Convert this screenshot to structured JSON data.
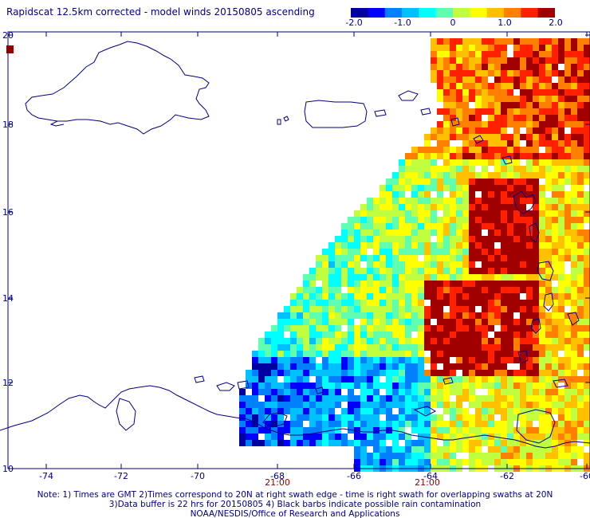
{
  "title": "Rapidscat 12.5km corrected - model winds 20150805 ascending",
  "colorbar": {
    "min": -2.0,
    "max": 2.0,
    "colors": [
      "#0000a0",
      "#0000ff",
      "#0080ff",
      "#00c0ff",
      "#00ffff",
      "#60ffb0",
      "#c0ff40",
      "#ffff00",
      "#ffc000",
      "#ff8000",
      "#ff2000",
      "#a00000"
    ],
    "tick_labels": [
      "-2.0",
      "-1.0",
      "0",
      "1.0",
      "2.0"
    ]
  },
  "axes": {
    "lon_ticks": [
      "-74",
      "-72",
      "-70",
      "-68",
      "-66",
      "-64",
      "-62",
      "-60"
    ],
    "lat_ticks": [
      "10",
      "12",
      "14",
      "16",
      "18",
      "20"
    ]
  },
  "time_labels": [
    "21:00",
    "21:00"
  ],
  "notes": [
    "Note: 1) Times are GMT 2)Times correspond to 20N at right swath edge - time is right swath for overlapping swaths at 20N",
    "3)Data buffer is 22 hrs for 20150805 4) Black barbs indicate possible rain contamination",
    "NOAA/NESDIS/Office of Research and Applications"
  ]
}
